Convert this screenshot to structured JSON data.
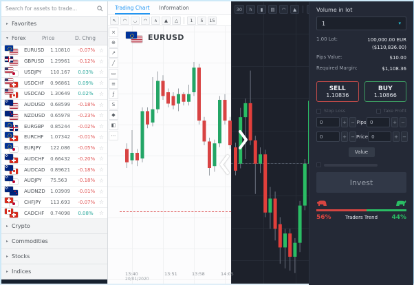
{
  "colors": {
    "accent_blue": "#2196f3",
    "sidebar_up_green": "#26a69a",
    "sidebar_down_red": "#e05252",
    "light_candle_up": "#23a566",
    "light_candle_down": "#d84343",
    "light_wick": "#9aa0a6",
    "dark_candle_up": "#2abd64",
    "dark_candle_down": "#e23f3b",
    "dark_wick": "#6b7280",
    "teal_accent": "#26c6da",
    "sell_red": "#c14b49",
    "buy_green": "#3d9e63",
    "trend_sell_red": "#d64541",
    "trend_buy_green": "#2abd64"
  },
  "sidebar": {
    "search_placeholder": "Search for assets to trade...",
    "favorites_label": "Favorites",
    "forex_label": "Forex",
    "price_column": "Price",
    "change_column": "D. Chng",
    "assets": [
      {
        "symbol": "EURUSD",
        "price": "1.10810",
        "change": "-0.07%",
        "dir": "down",
        "flags": [
          "eu",
          "us"
        ]
      },
      {
        "symbol": "GBPUSD",
        "price": "1.29961",
        "change": "-0.12%",
        "dir": "down",
        "flags": [
          "gb",
          "us"
        ]
      },
      {
        "symbol": "USDJPY",
        "price": "110.167",
        "change": "0.03%",
        "dir": "up",
        "flags": [
          "us",
          "jp"
        ]
      },
      {
        "symbol": "USDCHF",
        "price": "0.96861",
        "change": "0.09%",
        "dir": "up",
        "flags": [
          "us",
          "ch"
        ]
      },
      {
        "symbol": "USDCAD",
        "price": "1.30649",
        "change": "0.02%",
        "dir": "up",
        "flags": [
          "us",
          "ca"
        ]
      },
      {
        "symbol": "AUDUSD",
        "price": "0.68599",
        "change": "-0.18%",
        "dir": "down",
        "flags": [
          "au",
          "us"
        ]
      },
      {
        "symbol": "NZDUSD",
        "price": "0.65978",
        "change": "-0.23%",
        "dir": "down",
        "flags": [
          "nz",
          "us"
        ]
      },
      {
        "symbol": "EURGBP",
        "price": "0.85244",
        "change": "-0.02%",
        "dir": "down",
        "flags": [
          "eu",
          "gb"
        ]
      },
      {
        "symbol": "EURCHF",
        "price": "1.07342",
        "change": "-0.01%",
        "dir": "down",
        "flags": [
          "eu",
          "ch"
        ]
      },
      {
        "symbol": "EURJPY",
        "price": "122.086",
        "change": "-0.05%",
        "dir": "down",
        "flags": [
          "eu",
          "jp"
        ]
      },
      {
        "symbol": "AUDCHF",
        "price": "0.66432",
        "change": "-0.20%",
        "dir": "down",
        "flags": [
          "au",
          "ch"
        ]
      },
      {
        "symbol": "AUDCAD",
        "price": "0.89621",
        "change": "-0.18%",
        "dir": "down",
        "flags": [
          "au",
          "ca"
        ]
      },
      {
        "symbol": "AUDJPY",
        "price": "75.563",
        "change": "-0.18%",
        "dir": "down",
        "flags": [
          "au",
          "jp"
        ]
      },
      {
        "symbol": "AUDNZD",
        "price": "1.03909",
        "change": "-0.01%",
        "dir": "down",
        "flags": [
          "au",
          "nz"
        ]
      },
      {
        "symbol": "CHFJPY",
        "price": "113.693",
        "change": "-0.07%",
        "dir": "down",
        "flags": [
          "ch",
          "jp"
        ]
      },
      {
        "symbol": "CADCHF",
        "price": "0.74098",
        "change": "0.08%",
        "dir": "up",
        "flags": [
          "ca",
          "ch"
        ]
      }
    ],
    "collapsed_sections": [
      "Crypto",
      "Commodities",
      "Stocks",
      "Indices"
    ]
  },
  "chart_panel": {
    "tabs": [
      {
        "label": "Trading Chart",
        "active": true
      },
      {
        "label": "Information",
        "active": false
      }
    ],
    "symbol": "EURUSD",
    "symbol_flags": [
      "eu",
      "us"
    ],
    "toolbar_icons": [
      {
        "name": "cursor-icon",
        "glyph": "↖"
      },
      {
        "name": "line-style-icon",
        "glyph": "◠"
      },
      {
        "name": "area-style-icon",
        "glyph": "◡"
      },
      {
        "name": "candle-style-icon",
        "glyph": "◠"
      },
      {
        "name": "bar-style-icon",
        "glyph": "∧"
      },
      {
        "name": "mountain-style-icon",
        "glyph": "▲"
      },
      {
        "name": "hollow-style-icon",
        "glyph": "△"
      }
    ],
    "timeframes_light": [
      "1",
      "5",
      "15"
    ],
    "timeframes_dark": [
      "30",
      "h"
    ],
    "chart_type_icons": [
      {
        "name": "candlestick-type-icon",
        "glyph": "▮"
      },
      {
        "name": "bar-type-icon",
        "glyph": "▤"
      },
      {
        "name": "line-type-icon",
        "glyph": "◠"
      },
      {
        "name": "area-type-icon",
        "glyph": "▲"
      }
    ],
    "drawing_tools": [
      {
        "name": "close-tool-icon",
        "glyph": "×"
      },
      {
        "name": "crosshair-tool-icon",
        "glyph": "⊕"
      },
      {
        "name": "trendline-tool-icon",
        "glyph": "↗"
      },
      {
        "name": "line-tool-icon",
        "glyph": "╱"
      },
      {
        "name": "rectangle-tool-icon",
        "glyph": "▭"
      },
      {
        "name": "fibonacci-tool-icon",
        "glyph": "≡"
      },
      {
        "name": "function-tool-icon",
        "glyph": "ƒ"
      },
      {
        "name": "wave-tool-icon",
        "glyph": "S"
      },
      {
        "name": "shape-tool-icon",
        "glyph": "◆"
      },
      {
        "name": "pattern-tool-icon",
        "glyph": "◧"
      },
      {
        "name": "more-tool-icon",
        "glyph": "⋯"
      }
    ]
  },
  "trade_panel": {
    "volume_label": "Volume in lot",
    "volume_value": "1",
    "lot_label": "1.00 Lot:",
    "lot_value_eur": "100,000.00 EUR",
    "lot_value_usd": "($110,836.00)",
    "pips_value_label": "Pips Value:",
    "pips_value": "$10.00",
    "required_margin_label": "Required Margin:",
    "required_margin": "$1,108.36",
    "sell_label": "SELL",
    "sell_price": "1.10836",
    "buy_label": "BUY",
    "buy_price": "1.10866",
    "stop_loss_label": "Stop Loss",
    "take_profit_label": "Take Profit",
    "stepper_default": "0",
    "pips_row_label": "Pips",
    "price_row_label": "Price",
    "value_button_label": "Value",
    "invest_button_label": "Invest",
    "traders_trend": {
      "label": "Traders Trend",
      "sell_percent": "56%",
      "buy_percent": "44%"
    }
  },
  "chart_data": [
    {
      "type": "candlestick",
      "theme": "light",
      "symbol": "EURUSD",
      "grid": true,
      "y_axis_visible": false,
      "price_scale": "normalized 0-100 (no y-axis labels visible in screenshot)",
      "x_tick_labels": [
        "13:40",
        "13:51",
        "13:58",
        "14:05"
      ],
      "x_date_label": "20/01/2020",
      "current_price_line_level": 9,
      "candles_ohlc": [
        [
          42,
          45,
          32,
          35
        ],
        [
          36,
          52,
          34,
          40
        ],
        [
          40,
          42,
          33,
          36
        ],
        [
          37,
          64,
          35,
          62
        ],
        [
          62,
          64,
          53,
          55
        ],
        [
          56,
          80,
          54,
          63
        ],
        [
          63,
          83,
          61,
          78
        ],
        [
          78,
          81,
          68,
          70
        ],
        [
          72,
          74,
          64,
          66
        ],
        [
          70,
          72,
          63,
          65
        ],
        [
          66,
          74,
          62,
          71
        ],
        [
          71,
          72,
          65,
          67
        ],
        [
          67,
          76,
          65,
          71
        ],
        [
          72,
          88,
          70,
          85
        ],
        [
          85,
          87,
          55,
          57
        ],
        [
          57,
          59,
          44,
          46
        ],
        [
          46,
          48,
          28,
          32
        ],
        [
          33,
          47,
          30,
          45
        ],
        [
          45,
          70,
          43,
          68
        ],
        [
          68,
          71,
          55,
          57
        ],
        [
          57,
          59,
          42,
          44
        ]
      ]
    },
    {
      "type": "candlestick",
      "theme": "dark",
      "symbol": "EURUSD",
      "grid": true,
      "y_axis_visible": false,
      "price_scale": "normalized 0-100 (panel overlays right side of chart)",
      "current_price_line_level": 48,
      "candles_ohlc": [
        [
          55,
          57,
          43,
          45
        ],
        [
          48,
          72,
          46,
          68
        ],
        [
          68,
          76,
          50,
          74
        ],
        [
          74,
          88,
          56,
          58
        ],
        [
          58,
          60,
          35,
          48
        ],
        [
          48,
          55,
          44,
          52
        ],
        [
          52,
          54,
          25,
          27
        ],
        [
          27,
          38,
          20,
          33
        ],
        [
          33,
          36,
          15,
          20
        ],
        [
          22,
          25,
          5,
          12
        ],
        [
          12,
          20,
          3,
          18
        ],
        [
          18,
          20,
          2,
          8
        ],
        [
          8,
          16,
          1,
          14
        ],
        [
          14,
          32,
          10,
          30
        ],
        [
          30,
          50,
          28,
          48
        ],
        [
          48,
          78,
          45,
          75
        ]
      ]
    }
  ]
}
